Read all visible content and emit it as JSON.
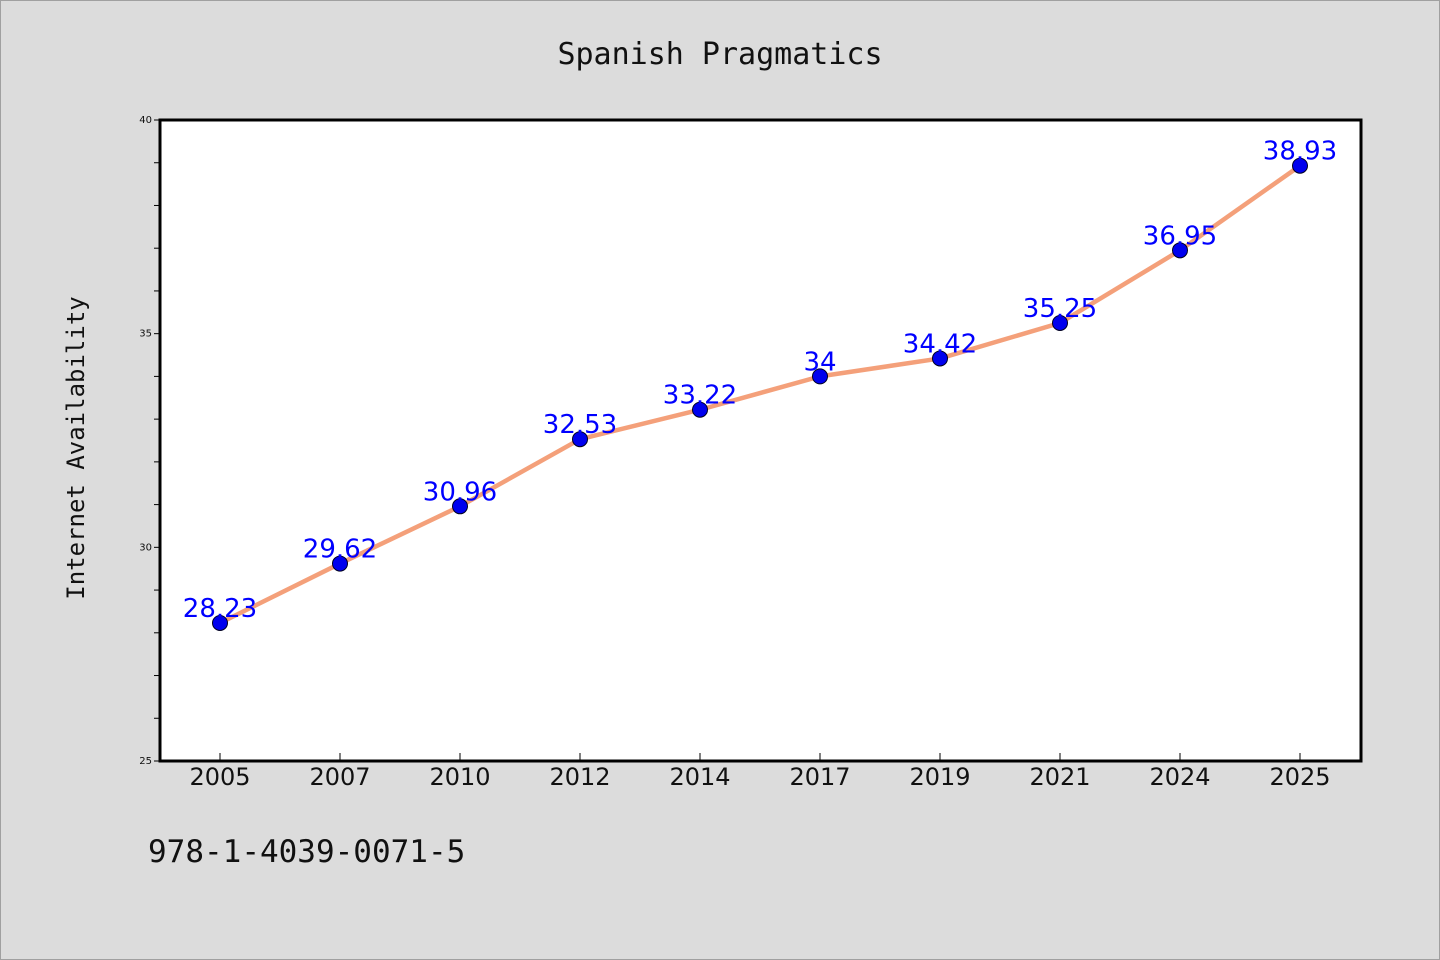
{
  "chart_data": {
    "type": "line",
    "title": "Spanish Pragmatics",
    "xlabel": "",
    "ylabel": "Internet Availability",
    "categories": [
      "2005",
      "2007",
      "2010",
      "2012",
      "2014",
      "2017",
      "2019",
      "2021",
      "2024",
      "2025"
    ],
    "series": [
      {
        "values": [
          28.23,
          29.62,
          30.96,
          32.53,
          33.22,
          34,
          34.42,
          35.25,
          36.95,
          38.93
        ],
        "labels": [
          "28.23",
          "29.62",
          "30.96",
          "32.53",
          "33.22",
          "34",
          "34.42",
          "35.25",
          "36.95",
          "38.93"
        ],
        "line_color": "#f4a07a",
        "marker_color": "#0000ee",
        "label_color": "#0000ff"
      }
    ],
    "ylim": [
      25,
      40
    ],
    "yticks": [
      "25",
      "30",
      "35",
      "40"
    ],
    "grid": false,
    "legend": "none"
  },
  "footer": {
    "code": "978-1-4039-0071-5"
  }
}
